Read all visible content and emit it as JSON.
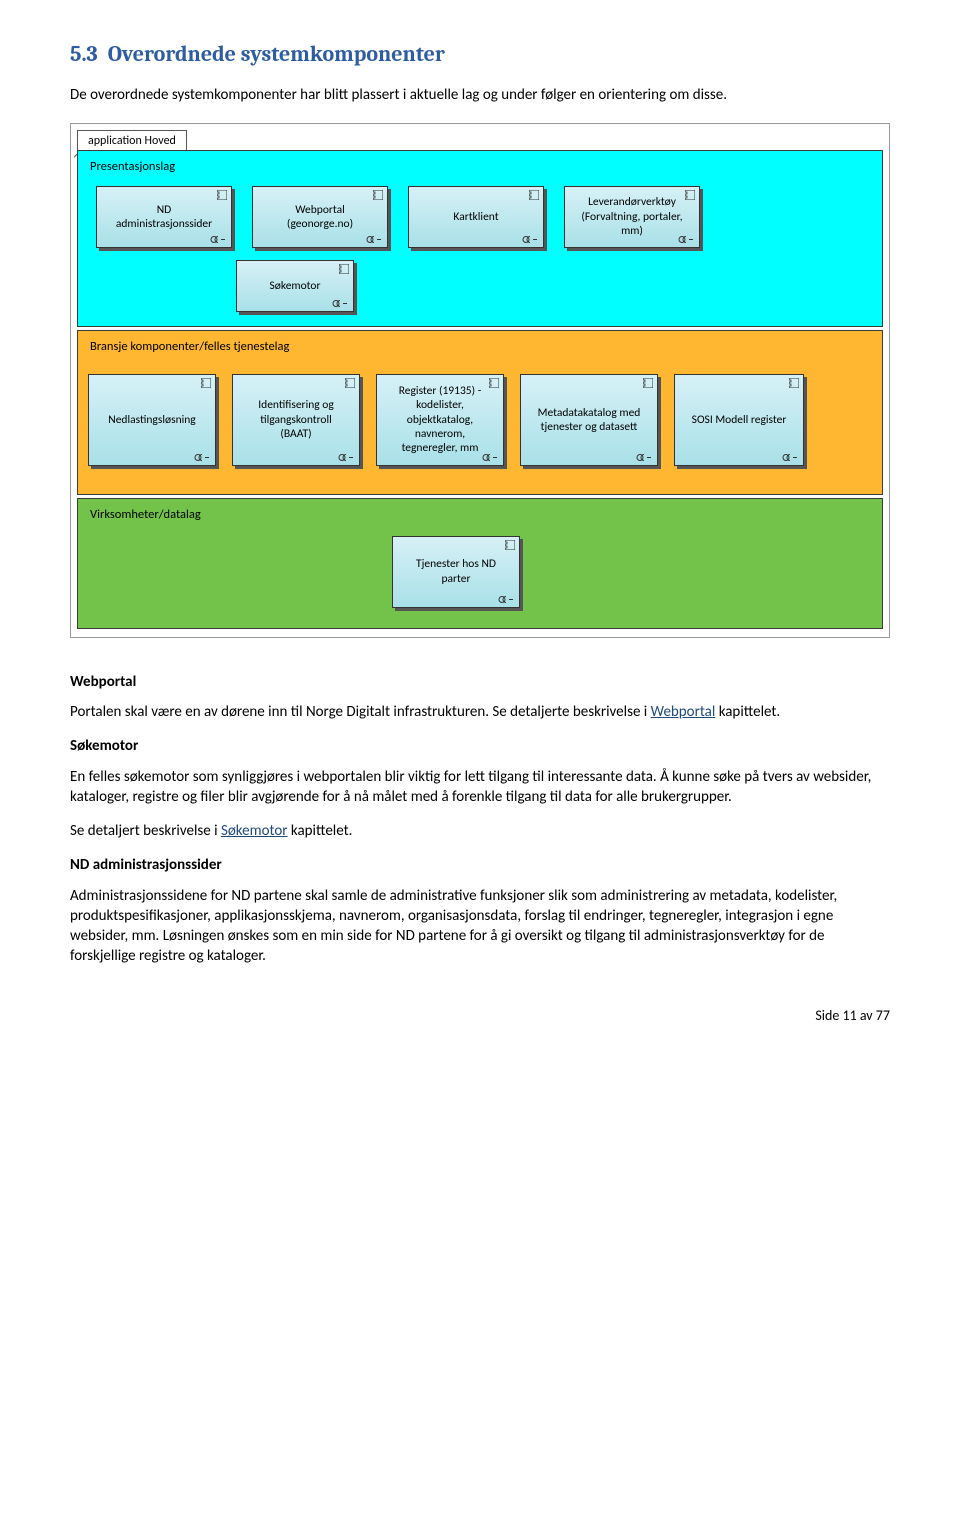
{
  "heading": {
    "number": "5.3",
    "title": "Overordnede systemkomponenter"
  },
  "intro": "De overordnede systemkomponenter har blitt plassert i aktuelle lag og under følger en orientering om disse.",
  "diagram": {
    "app_tab": "application Hoved",
    "layers": [
      {
        "label": "Presentasjonslag",
        "color": "#00ffff",
        "components_row1": [
          "ND\nadministrasjonssider",
          "Webportal\n(geonorge.no)",
          "Kartklient",
          "Leverandørverktøy\n(Forvaltning, portaler,\nmm)"
        ],
        "components_row2": [
          "Søkemotor"
        ]
      },
      {
        "label": "Bransje komponenter/felles tjenestelag",
        "color": "#ffb732",
        "components_row1": [
          "Nedlastingsløsning",
          "Identifisering og\ntilgangskontroll\n(BAAT)",
          "Register (19135) -\nkodelister,\nobjektkatalog,\nnavnerom,\ntegneregler, mm",
          "Metadatakatalog med\ntjenester og datasett",
          "SOSI Modell register"
        ]
      },
      {
        "label": "Virksomheter/datalag",
        "color": "#73c24a",
        "components_row1": [
          "Tjenester hos ND\nparter"
        ]
      }
    ]
  },
  "sections": {
    "s1": {
      "head": "Webportal",
      "p1a": "Portalen skal være en av dørene inn til Norge Digitalt infrastrukturen. Se detaljerte beskrivelse i ",
      "p1link": "Webportal",
      "p1b": " kapittelet."
    },
    "s2": {
      "head": "Søkemotor",
      "p1": "En felles søkemotor som synliggjøres i webportalen blir viktig for lett tilgang til interessante data. Å kunne søke på tvers av websider, kataloger, registre og filer blir avgjørende for å nå målet med å forenkle tilgang til data for alle brukergrupper.",
      "p2a": "Se detaljert beskrivelse i ",
      "p2link": "Søkemotor",
      "p2b": " kapittelet."
    },
    "s3": {
      "head": "ND administrasjonssider",
      "p1": "Administrasjonssidene for ND partene skal samle de administrative funksjoner slik som administrering av metadata, kodelister, produktspesifikasjoner, applikasjonsskjema, navnerom, organisasjonsdata, forslag til endringer, tegneregler, integrasjon i egne websider, mm. Løsningen ønskes som en min side for ND partene for å gi oversikt og tilgang til administrasjonsverktøy for de forskjellige registre og kataloger."
    }
  },
  "footer": "Side 11 av 77"
}
